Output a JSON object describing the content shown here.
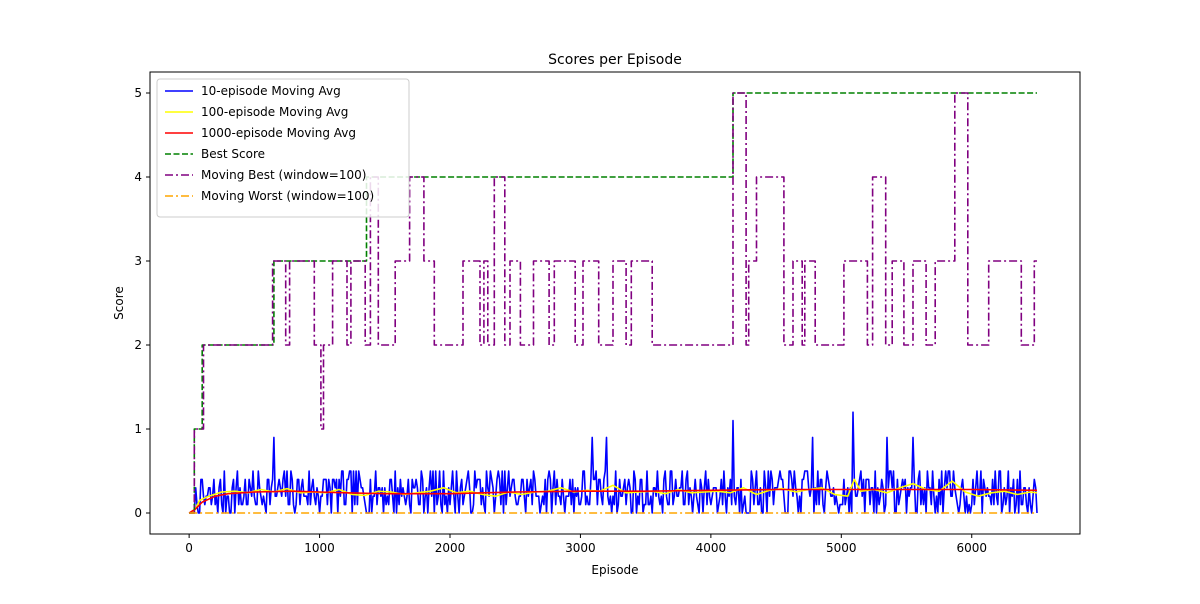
{
  "chart_data": {
    "type": "line",
    "title": "Scores per Episode",
    "xlabel": "Episode",
    "ylabel": "Score",
    "xlim": [
      -300,
      6830
    ],
    "ylim": [
      -0.25,
      5.25
    ],
    "xticks": [
      0,
      1000,
      2000,
      3000,
      4000,
      5000,
      6000
    ],
    "yticks": [
      0,
      1,
      2,
      3,
      4,
      5
    ],
    "grid": false,
    "legend_position": "top-left",
    "legend": [
      "10-episode Moving Avg",
      "100-episode Moving Avg",
      "1000-episode Moving Avg",
      "Best Score",
      "Moving Best (window=100)",
      "Moving Worst (window=100)"
    ],
    "series": [
      {
        "name": "10-episode Moving Avg",
        "color": "#0000ff",
        "style": "solid",
        "noisy": true,
        "noise_seed": 7,
        "noise_min": 0,
        "noise_max": 0.6,
        "x": [
          0,
          50,
          500,
          1000,
          2000,
          3000,
          4000,
          5000,
          6000,
          6500
        ],
        "y": [
          0,
          0.15,
          0.25,
          0.25,
          0.25,
          0.25,
          0.25,
          0.25,
          0.25,
          0.25
        ],
        "spikes": [
          [
            650,
            0.9
          ],
          [
            3090,
            0.9
          ],
          [
            3200,
            0.9
          ],
          [
            4170,
            1.1
          ],
          [
            4780,
            0.9
          ],
          [
            5090,
            1.2
          ],
          [
            5350,
            0.9
          ],
          [
            5550,
            0.9
          ]
        ]
      },
      {
        "name": "100-episode Moving Avg",
        "color": "#ffff00",
        "style": "solid",
        "x": [
          0,
          40,
          80,
          150,
          250,
          350,
          450,
          550,
          650,
          750,
          850,
          950,
          1050,
          1150,
          1250,
          1350,
          1450,
          1550,
          1650,
          1750,
          1850,
          1950,
          2050,
          2150,
          2250,
          2350,
          2450,
          2550,
          2650,
          2750,
          2850,
          2950,
          3050,
          3150,
          3250,
          3350,
          3450,
          3550,
          3650,
          3750,
          3850,
          3950,
          4050,
          4150,
          4250,
          4350,
          4450,
          4550,
          4650,
          4750,
          4850,
          4950,
          5050,
          5100,
          5150,
          5250,
          5350,
          5450,
          5550,
          5650,
          5750,
          5850,
          5950,
          6050,
          6150,
          6250,
          6350,
          6450,
          6500
        ],
        "y": [
          0,
          0.02,
          0.15,
          0.2,
          0.25,
          0.26,
          0.24,
          0.28,
          0.25,
          0.29,
          0.24,
          0.25,
          0.24,
          0.28,
          0.22,
          0.21,
          0.26,
          0.25,
          0.22,
          0.24,
          0.26,
          0.3,
          0.24,
          0.26,
          0.22,
          0.2,
          0.25,
          0.22,
          0.25,
          0.26,
          0.3,
          0.25,
          0.27,
          0.26,
          0.33,
          0.24,
          0.25,
          0.26,
          0.23,
          0.28,
          0.24,
          0.25,
          0.26,
          0.24,
          0.3,
          0.22,
          0.27,
          0.29,
          0.25,
          0.28,
          0.3,
          0.22,
          0.2,
          0.4,
          0.26,
          0.28,
          0.24,
          0.3,
          0.35,
          0.28,
          0.26,
          0.38,
          0.25,
          0.2,
          0.24,
          0.26,
          0.22,
          0.25,
          0.24
        ]
      },
      {
        "name": "1000-episode Moving Avg",
        "color": "#ff0000",
        "style": "solid",
        "x": [
          0,
          50,
          100,
          200,
          300,
          500,
          800,
          1000,
          1200,
          1500,
          2000,
          2500,
          3000,
          3500,
          4000,
          4500,
          5000,
          5500,
          6000,
          6500
        ],
        "y": [
          0,
          0.05,
          0.13,
          0.2,
          0.23,
          0.25,
          0.26,
          0.25,
          0.24,
          0.23,
          0.23,
          0.25,
          0.26,
          0.26,
          0.27,
          0.28,
          0.28,
          0.28,
          0.28,
          0.27
        ]
      },
      {
        "name": "Best Score",
        "color": "#008000",
        "style": "dashed",
        "steps": [
          [
            0,
            0
          ],
          [
            20,
            0
          ],
          [
            40,
            1
          ],
          [
            100,
            2
          ],
          [
            650,
            3
          ],
          [
            1360,
            4
          ],
          [
            4170,
            5
          ],
          [
            6500,
            5
          ]
        ]
      },
      {
        "name": "Moving Best (window=100)",
        "color": "#800080",
        "style": "dashdot",
        "steps": [
          [
            0,
            0
          ],
          [
            40,
            1
          ],
          [
            110,
            2
          ],
          [
            640,
            3
          ],
          [
            740,
            2
          ],
          [
            770,
            3
          ],
          [
            960,
            2
          ],
          [
            1010,
            1
          ],
          [
            1030,
            2
          ],
          [
            1100,
            3
          ],
          [
            1210,
            2
          ],
          [
            1240,
            3
          ],
          [
            1350,
            2
          ],
          [
            1390,
            4
          ],
          [
            1450,
            2
          ],
          [
            1580,
            3
          ],
          [
            1690,
            4
          ],
          [
            1800,
            3
          ],
          [
            1880,
            2
          ],
          [
            2100,
            3
          ],
          [
            2230,
            2
          ],
          [
            2260,
            3
          ],
          [
            2290,
            2
          ],
          [
            2340,
            4
          ],
          [
            2420,
            2
          ],
          [
            2460,
            3
          ],
          [
            2540,
            2
          ],
          [
            2640,
            3
          ],
          [
            2760,
            2
          ],
          [
            2800,
            3
          ],
          [
            2960,
            2
          ],
          [
            3020,
            3
          ],
          [
            3140,
            2
          ],
          [
            3250,
            3
          ],
          [
            3350,
            2
          ],
          [
            3390,
            3
          ],
          [
            3550,
            2
          ],
          [
            4170,
            5
          ],
          [
            4270,
            2
          ],
          [
            4290,
            3
          ],
          [
            4350,
            4
          ],
          [
            4560,
            2
          ],
          [
            4630,
            3
          ],
          [
            4700,
            2
          ],
          [
            4720,
            3
          ],
          [
            4800,
            2
          ],
          [
            5020,
            3
          ],
          [
            5200,
            2
          ],
          [
            5240,
            4
          ],
          [
            5340,
            2
          ],
          [
            5390,
            3
          ],
          [
            5480,
            2
          ],
          [
            5550,
            3
          ],
          [
            5650,
            2
          ],
          [
            5720,
            3
          ],
          [
            5870,
            5
          ],
          [
            5970,
            2
          ],
          [
            6130,
            3
          ],
          [
            6380,
            2
          ],
          [
            6480,
            3
          ],
          [
            6500,
            3
          ]
        ]
      },
      {
        "name": "Moving Worst (window=100)",
        "color": "#ffa500",
        "style": "dashdot",
        "steps": [
          [
            0,
            0
          ],
          [
            6500,
            0
          ]
        ]
      }
    ]
  }
}
